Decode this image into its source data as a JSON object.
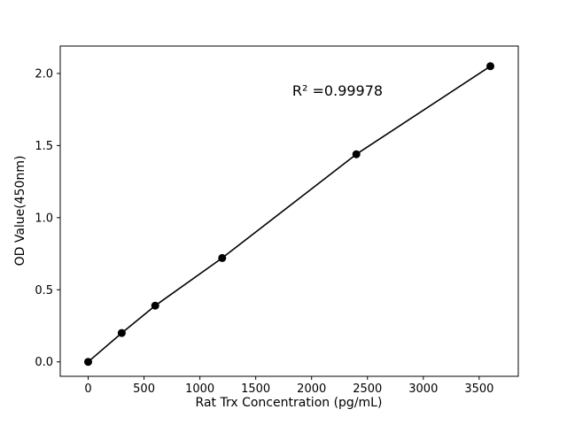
{
  "figure": {
    "background": "#ffffff"
  },
  "chart_data": {
    "type": "scatter",
    "series_name": "standard-curve",
    "x": [
      0,
      300,
      600,
      1200,
      2400,
      3600
    ],
    "y": [
      0.0,
      0.2,
      0.39,
      0.72,
      1.44,
      2.05
    ],
    "title": "",
    "xlabel": "Rat Trx Concentration (pg/mL)",
    "ylabel": "OD Value(450nm)",
    "annotation": "R² =0.99978",
    "xlim": [
      -250,
      3850
    ],
    "ylim": [
      -0.1,
      2.19
    ],
    "xtick_values": [
      0,
      500,
      1000,
      1500,
      2000,
      2500,
      3000,
      3500
    ],
    "xtick_labels": [
      "0",
      "500",
      "1000",
      "1500",
      "2000",
      "2500",
      "3000",
      "3500"
    ],
    "ytick_values": [
      0.0,
      0.5,
      1.0,
      1.5,
      2.0
    ],
    "ytick_labels": [
      "0.0",
      "0.5",
      "1.0",
      "1.5",
      "2.0"
    ],
    "line_color": "#000000",
    "marker_color": "#000000",
    "grid": false,
    "legend": "none"
  }
}
